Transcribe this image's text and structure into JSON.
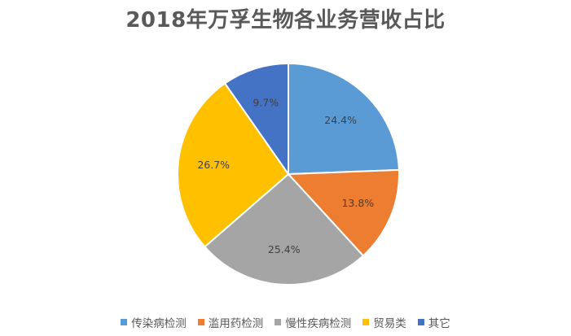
{
  "chart_data": {
    "type": "pie",
    "title": "2018年万孚生物各业务营收占比",
    "categories": [
      "传染病检测",
      "滥用药检测",
      "慢性疾病检测",
      "贸易类",
      "其它"
    ],
    "values": [
      24.4,
      13.8,
      25.4,
      26.7,
      9.7
    ],
    "labels": [
      "24.4%",
      "13.8%",
      "25.4%",
      "26.7%",
      "9.7%"
    ],
    "colors": [
      "#5B9BD5",
      "#ED7D31",
      "#A5A5A5",
      "#FFC000",
      "#4472C4"
    ],
    "start_angle_deg": 0,
    "direction": "clockwise",
    "legend_position": "bottom"
  }
}
